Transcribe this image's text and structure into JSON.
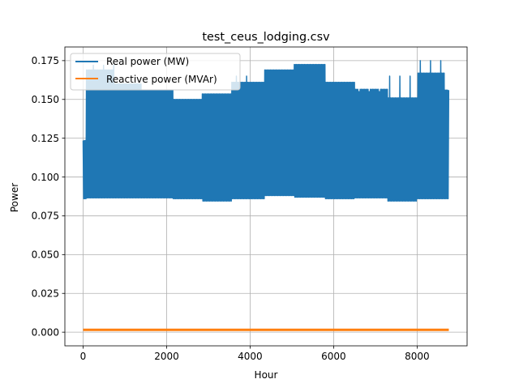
{
  "chart_data": {
    "type": "line",
    "title": "test_ceus_lodging.csv",
    "xlabel": "Hour",
    "ylabel": "Power",
    "xlim": [
      -437,
      9197
    ],
    "ylim": [
      -0.0088,
      0.1838
    ],
    "x_ticks": [
      0,
      2000,
      4000,
      6000,
      8000
    ],
    "x_tick_labels": [
      "0",
      "2000",
      "4000",
      "6000",
      "8000"
    ],
    "y_ticks": [
      0.0,
      0.025,
      0.05,
      0.075,
      0.1,
      0.125,
      0.15,
      0.175
    ],
    "y_tick_labels": [
      "0.000",
      "0.025",
      "0.050",
      "0.075",
      "0.100",
      "0.125",
      "0.150",
      "0.175"
    ],
    "grid": true,
    "legend_position": "upper-left",
    "colors": {
      "real": "#1f77b4",
      "reactive": "#ff7f0e"
    },
    "series": [
      {
        "name": "Real power (MW)",
        "kind": "daily-oscillation-envelope",
        "x_end": 8759,
        "segments": [
          {
            "x": [
              0,
              80
            ],
            "high": 0.1235,
            "low": 0.086
          },
          {
            "x": [
              80,
              750
            ],
            "high": 0.169,
            "low": 0.0865
          },
          {
            "x": [
              750,
              1400
            ],
            "high": 0.16,
            "low": 0.0865
          },
          {
            "x": [
              1400,
              2150
            ],
            "high": 0.156,
            "low": 0.0865
          },
          {
            "x": [
              2150,
              2850
            ],
            "high": 0.15,
            "low": 0.086
          },
          {
            "x": [
              2850,
              3550
            ],
            "high": 0.1535,
            "low": 0.0845
          },
          {
            "x": [
              3550,
              4350
            ],
            "high": 0.161,
            "low": 0.086
          },
          {
            "x": [
              4350,
              5050
            ],
            "high": 0.169,
            "low": 0.088
          },
          {
            "x": [
              5050,
              5800
            ],
            "high": 0.1725,
            "low": 0.087
          },
          {
            "x": [
              5800,
              6500
            ],
            "high": 0.161,
            "low": 0.086
          },
          {
            "x": [
              6500,
              7300
            ],
            "high": 0.1565,
            "low": 0.0865
          },
          {
            "x": [
              7300,
              8000
            ],
            "high": 0.151,
            "low": 0.0845
          },
          {
            "x": [
              8000,
              8650
            ],
            "high": 0.167,
            "low": 0.086
          },
          {
            "x": [
              8650,
              8759
            ],
            "high": 0.156,
            "low": 0.086
          }
        ],
        "peak_spikes": [
          {
            "x": [
              150,
              750
            ],
            "value": 0.172
          },
          {
            "x": [
              3550,
              4100
            ],
            "value": 0.165
          },
          {
            "x": [
              6500,
              7250
            ],
            "value": 0.155
          },
          {
            "x": [
              7300,
              7950
            ],
            "value": 0.165
          },
          {
            "x": [
              8000,
              8650
            ],
            "value": 0.175
          }
        ]
      },
      {
        "name": "Reactive power (MVAr)",
        "kind": "flat",
        "x": [
          0,
          8759
        ],
        "values": [
          0.0015,
          0.0015
        ]
      }
    ]
  }
}
